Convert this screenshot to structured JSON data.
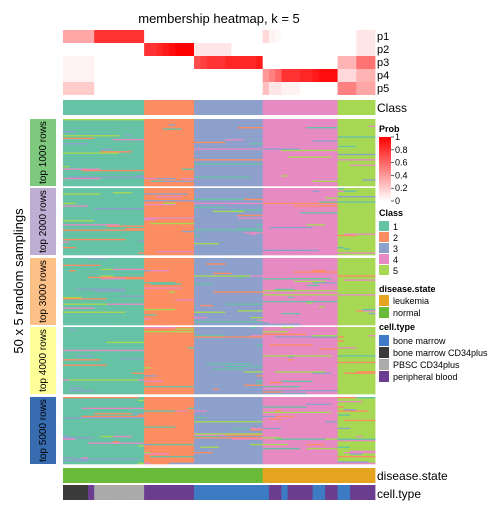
{
  "chart_data": {
    "type": "heatmap",
    "title": "membership heatmap, k = 5",
    "ylabel": "50 x 5 random samplings",
    "membership_rows": [
      "p1",
      "p2",
      "p3",
      "p4",
      "p5"
    ],
    "class_row_label": "Class",
    "sampling_groups": [
      "top 1000 rows",
      "top 2000 rows",
      "top 3000 rows",
      "top 4000 rows",
      "top 5000 rows"
    ],
    "sampling_group_colors": [
      "#7FC97F",
      "#BEAED4",
      "#FDC086",
      "#FFFF99",
      "#386CB0"
    ],
    "rows_per_group": 50,
    "class_colors": {
      "1": "#66C2A5",
      "2": "#FC8D62",
      "3": "#8DA0CB",
      "4": "#E78AC3",
      "5": "#A6D854"
    },
    "class_order": [
      1,
      1,
      1,
      1,
      1,
      1,
      1,
      1,
      1,
      1,
      1,
      1,
      1,
      2,
      2,
      2,
      2,
      2,
      2,
      2,
      2,
      3,
      3,
      3,
      3,
      3,
      3,
      3,
      3,
      3,
      3,
      3,
      4,
      4,
      4,
      4,
      4,
      4,
      4,
      4,
      4,
      4,
      4,
      4,
      5,
      5,
      5,
      5,
      5,
      5
    ],
    "membership": {
      "p1": [
        0.35,
        0.35,
        0.35,
        0.35,
        0.35,
        0.8,
        0.8,
        0.8,
        0.8,
        0.8,
        0.8,
        0.8,
        0.8,
        0,
        0,
        0,
        0,
        0,
        0,
        0,
        0,
        0,
        0,
        0,
        0,
        0,
        0,
        0,
        0,
        0,
        0,
        0,
        0.15,
        0.05,
        0.02,
        0,
        0,
        0,
        0,
        0,
        0,
        0,
        0,
        0,
        0,
        0,
        0,
        0.1,
        0.1,
        0.1
      ],
      "p2": [
        0,
        0,
        0,
        0,
        0,
        0,
        0,
        0,
        0,
        0,
        0,
        0,
        0,
        0.8,
        0.8,
        0.85,
        0.9,
        0.95,
        1,
        1,
        1,
        0.1,
        0.1,
        0.1,
        0.1,
        0.1,
        0.1,
        0,
        0,
        0,
        0,
        0,
        0,
        0,
        0,
        0,
        0,
        0,
        0,
        0,
        0,
        0,
        0,
        0,
        0,
        0,
        0,
        0.1,
        0.1,
        0.1
      ],
      "p3": [
        0.05,
        0.05,
        0.05,
        0.05,
        0.05,
        0,
        0,
        0,
        0,
        0,
        0,
        0,
        0,
        0,
        0,
        0,
        0,
        0,
        0,
        0,
        0,
        0.7,
        0.75,
        0.8,
        0.8,
        0.8,
        0.85,
        0.85,
        0.85,
        0.85,
        0.85,
        0.9,
        0,
        0,
        0,
        0,
        0,
        0,
        0,
        0,
        0,
        0,
        0,
        0,
        0.3,
        0.3,
        0.3,
        0.55,
        0.55,
        0.55
      ],
      "p4": [
        0.05,
        0.05,
        0.05,
        0.05,
        0.05,
        0,
        0,
        0,
        0,
        0,
        0,
        0,
        0,
        0,
        0,
        0,
        0,
        0,
        0,
        0,
        0,
        0,
        0,
        0,
        0,
        0,
        0,
        0,
        0,
        0,
        0,
        0,
        0.4,
        0.5,
        0.6,
        0.8,
        0.8,
        0.8,
        0.85,
        0.85,
        0.9,
        0.95,
        0.95,
        0.95,
        0.15,
        0.15,
        0.15,
        0.3,
        0.3,
        0.3
      ],
      "p5": [
        0.2,
        0.2,
        0.2,
        0.2,
        0.2,
        0,
        0,
        0,
        0,
        0,
        0,
        0,
        0,
        0,
        0,
        0,
        0,
        0,
        0,
        0,
        0,
        0,
        0,
        0,
        0,
        0,
        0,
        0,
        0,
        0,
        0,
        0,
        0.25,
        0.1,
        0.1,
        0.05,
        0.05,
        0.05,
        0,
        0,
        0,
        0,
        0,
        0,
        0.5,
        0.5,
        0.5,
        0.35,
        0.35,
        0.35
      ]
    },
    "legend_prob": {
      "title": "Prob",
      "ticks": [
        "1",
        "0.8",
        "0.6",
        "0.4",
        "0.2",
        "0"
      ],
      "low_color": "#FFFFFF",
      "high_color": "#FF0000"
    },
    "legend_class": {
      "title": "Class",
      "items": [
        "1",
        "2",
        "3",
        "4",
        "5"
      ]
    },
    "disease_state": {
      "label": "disease.state",
      "legend_title": "disease.state",
      "categories": [
        "leukemia",
        "normal"
      ],
      "colors": {
        "leukemia": "#E5A41F",
        "normal": "#6BBB3A"
      },
      "values": [
        "normal",
        "normal",
        "normal",
        "normal",
        "normal",
        "normal",
        "normal",
        "normal",
        "normal",
        "normal",
        "normal",
        "normal",
        "normal",
        "normal",
        "normal",
        "normal",
        "normal",
        "normal",
        "normal",
        "normal",
        "normal",
        "normal",
        "normal",
        "normal",
        "normal",
        "normal",
        "normal",
        "normal",
        "normal",
        "normal",
        "normal",
        "normal",
        "leukemia",
        "leukemia",
        "leukemia",
        "leukemia",
        "leukemia",
        "leukemia",
        "leukemia",
        "leukemia",
        "leukemia",
        "leukemia",
        "leukemia",
        "leukemia",
        "leukemia",
        "leukemia",
        "leukemia",
        "leukemia",
        "leukemia",
        "leukemia"
      ]
    },
    "cell_type": {
      "label": "cell.type",
      "legend_title": "cell.type",
      "categories": [
        "bone marrow",
        "bone marrow CD34plus",
        "PBSC CD34plus",
        "peripheral blood"
      ],
      "colors": {
        "bone marrow": "#3D7BC4",
        "bone marrow CD34plus": "#3A3A3A",
        "PBSC CD34plus": "#ABABAB",
        "peripheral blood": "#6A3D8F"
      },
      "values": [
        "bone marrow CD34plus",
        "bone marrow CD34plus",
        "bone marrow CD34plus",
        "bone marrow CD34plus",
        "peripheral blood",
        "PBSC CD34plus",
        "PBSC CD34plus",
        "PBSC CD34plus",
        "PBSC CD34plus",
        "PBSC CD34plus",
        "PBSC CD34plus",
        "PBSC CD34plus",
        "PBSC CD34plus",
        "peripheral blood",
        "peripheral blood",
        "peripheral blood",
        "peripheral blood",
        "peripheral blood",
        "peripheral blood",
        "peripheral blood",
        "peripheral blood",
        "bone marrow",
        "bone marrow",
        "bone marrow",
        "bone marrow",
        "bone marrow",
        "bone marrow",
        "bone marrow",
        "bone marrow",
        "bone marrow",
        "bone marrow",
        "bone marrow",
        "bone marrow",
        "peripheral blood",
        "peripheral blood",
        "bone marrow",
        "peripheral blood",
        "peripheral blood",
        "peripheral blood",
        "peripheral blood",
        "bone marrow",
        "bone marrow",
        "peripheral blood",
        "peripheral blood",
        "bone marrow",
        "bone marrow",
        "peripheral blood",
        "peripheral blood",
        "peripheral blood",
        "peripheral blood"
      ]
    }
  }
}
